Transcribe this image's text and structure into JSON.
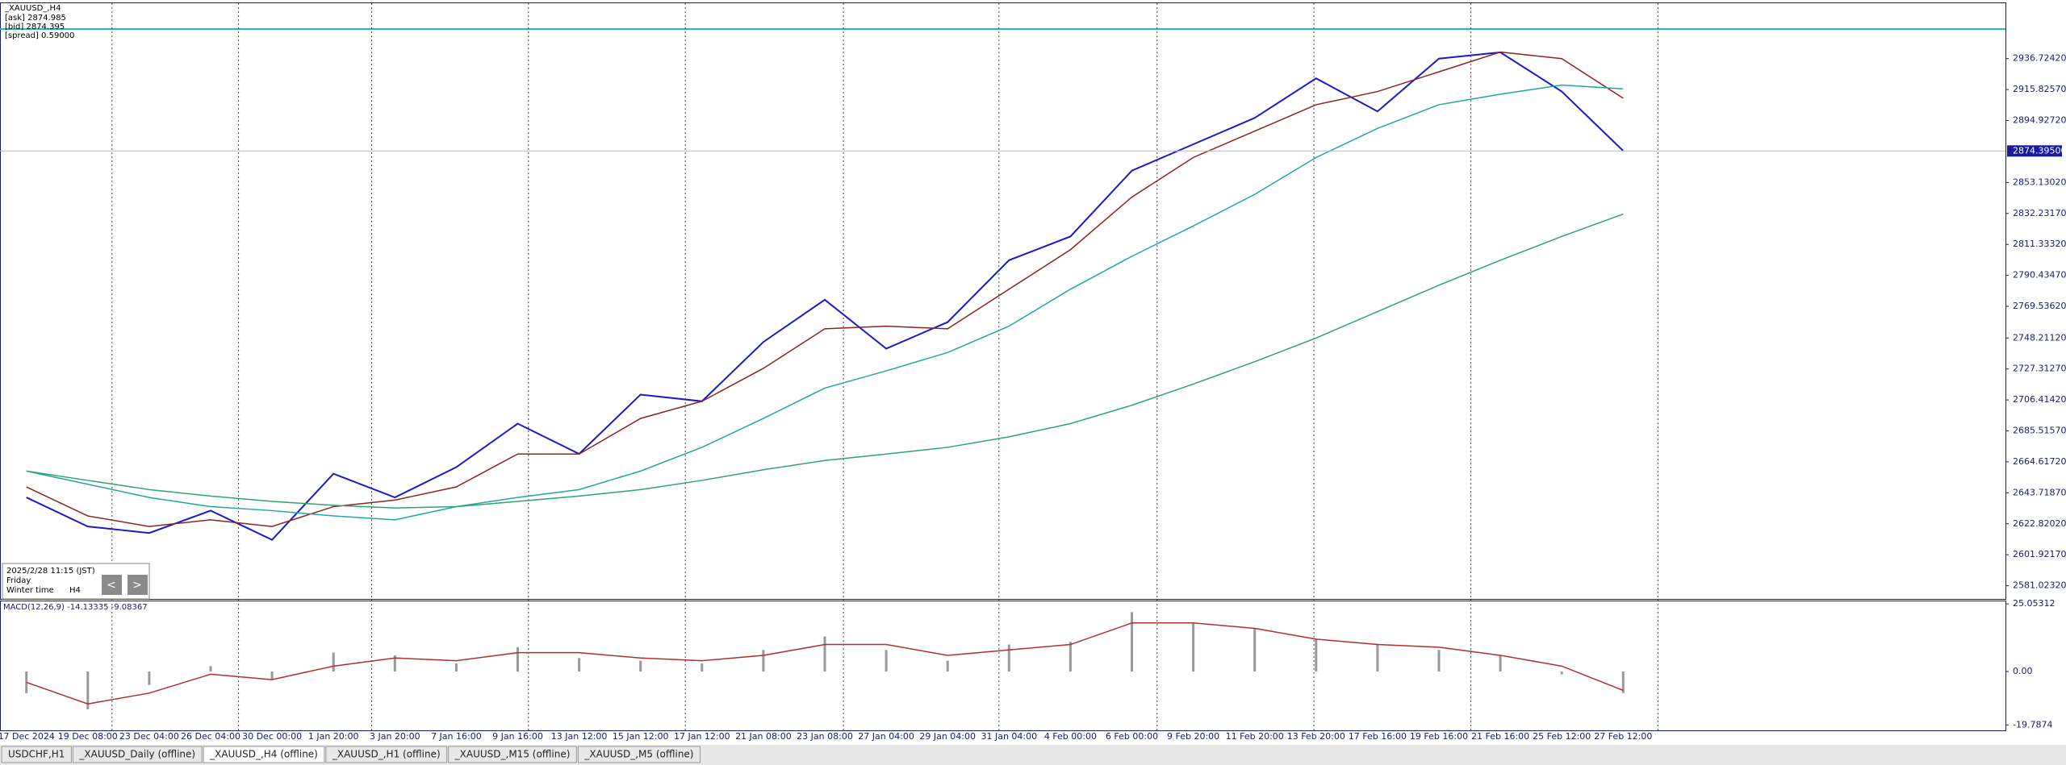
{
  "header": {
    "symbol": "_XAUUSD_,H4",
    "ask": "[ask] 2874.985",
    "bid": "[bid] 2874.395",
    "spread": "[spread] 0.59000"
  },
  "info_box": {
    "datetime": "2025/2/28 11:15 (JST)",
    "day": "Friday",
    "season": "Winter time",
    "timeframe": "H4",
    "prev": "<",
    "next": ">"
  },
  "tabs": [
    "USDCHF,H1",
    "_XAUUSD_Daily (offline)",
    "_XAUUSD_,H4 (offline)",
    "_XAUUSD_,H1 (offline)",
    "_XAUUSD_,M15 (offline)",
    "_XAUUSD_,M5 (offline)"
  ],
  "active_tab": 2,
  "chart_data": [
    {
      "type": "line",
      "categories": [
        "17 Dec 2024",
        "19 Dec 08:00",
        "23 Dec 04:00",
        "26 Dec 04:00",
        "30 Dec 00:00",
        "1 Jan 20:00",
        "3 Jan 20:00",
        "7 Jan 16:00",
        "9 Jan 16:00",
        "13 Jan 12:00",
        "15 Jan 12:00",
        "17 Jan 12:00",
        "21 Jan 08:00",
        "23 Jan 08:00",
        "27 Jan 04:00",
        "29 Jan 04:00",
        "31 Jan 04:00",
        "4 Feb 00:00",
        "6 Feb 00:00",
        "9 Feb 20:00",
        "11 Feb 20:00",
        "13 Feb 20:00",
        "17 Feb 16:00",
        "19 Feb 16:00",
        "21 Feb 16:00",
        "25 Feb 12:00",
        "27 Feb 12:00"
      ],
      "series": [
        {
          "color": "#1a1acc",
          "values": [
            2640.6,
            2621,
            2616.6,
            2631.7,
            2612,
            2656.6,
            2640.6,
            2661,
            2690.4,
            2670,
            2710,
            2705.5,
            2745.5,
            2774,
            2741,
            2758.9,
            2800.7,
            2816.7,
            2861.1,
            2878.9,
            2896.7,
            2923.4,
            2901.1,
            2936.7,
            2941,
            2914.5,
            2874.5
          ]
        },
        {
          "color": "#8b2323",
          "values": [
            2647.7,
            2628.1,
            2621.0,
            2625.5,
            2621.0,
            2634.4,
            2638.8,
            2647.7,
            2669.9,
            2669.9,
            2693.9,
            2705.5,
            2727.7,
            2754.4,
            2756.2,
            2754.4,
            2781.1,
            2807.8,
            2843.3,
            2870.0,
            2887.8,
            2905.6,
            2914.5,
            2927.8,
            2941.2,
            2936.7,
            2910.0
          ]
        },
        {
          "color": "#20a8a0",
          "values": [
            2658.4,
            2649.5,
            2640.6,
            2634.4,
            2631.7,
            2628.1,
            2625.5,
            2634.4,
            2640.6,
            2645.9,
            2658.4,
            2674.4,
            2693.9,
            2714.4,
            2726.0,
            2738.4,
            2756.2,
            2781.1,
            2803.3,
            2823.8,
            2845.1,
            2870.0,
            2889.6,
            2905.6,
            2912.7,
            2918.9,
            2916.3
          ]
        },
        {
          "color": "#2ca56e",
          "values": [
            2658.4,
            2652.1,
            2645.9,
            2641.5,
            2637.9,
            2635.3,
            2633.5,
            2634.4,
            2637.9,
            2641.5,
            2645.9,
            2652.1,
            2659.3,
            2665.5,
            2669.9,
            2674.4,
            2681.5,
            2690.4,
            2702.8,
            2717.1,
            2732.2,
            2748.2,
            2766.0,
            2783.8,
            2800.7,
            2816.7,
            2831.8
          ]
        }
      ],
      "ylim": [
        2572.1,
        2974.1
      ],
      "yticks": [
        {
          "value": 2936.7242,
          "label": "2936.72420"
        },
        {
          "value": 2915.8257,
          "label": "2915.82570"
        },
        {
          "value": 2894.9272,
          "label": "2894.92720"
        },
        {
          "value": 2853.1302,
          "label": "2853.13020"
        },
        {
          "value": 2832.2317,
          "label": "2832.23170"
        },
        {
          "value": 2811.3332,
          "label": "2811.33320"
        },
        {
          "value": 2790.4347,
          "label": "2790.43470"
        },
        {
          "value": 2769.5362,
          "label": "2769.53620"
        },
        {
          "value": 2748.2112,
          "label": "2748.21120"
        },
        {
          "value": 2727.3127,
          "label": "2727.31270"
        },
        {
          "value": 2706.4142,
          "label": "2706.41420"
        },
        {
          "value": 2685.5157,
          "label": "2685.51570"
        },
        {
          "value": 2664.6172,
          "label": "2664.61720"
        },
        {
          "value": 2643.7187,
          "label": "2643.71870"
        },
        {
          "value": 2622.8202,
          "label": "2622.82020"
        },
        {
          "value": 2601.9217,
          "label": "2601.92170"
        },
        {
          "value": 2581.0232,
          "label": "2581.02320"
        }
      ],
      "current": {
        "value": 2874.395,
        "label": "2874.39500",
        "color": "#1a1a9e"
      }
    },
    {
      "type": "bar",
      "title": "MACD(12,26,9) -14.13335 -9.08367",
      "values": [
        -8,
        -14,
        -5,
        2,
        -3,
        7,
        6,
        3,
        9,
        5,
        4,
        3,
        8,
        13,
        8,
        4,
        10,
        11,
        22,
        18,
        16,
        12,
        10,
        8,
        6,
        -1,
        -8
      ],
      "color": "#999999",
      "signal": {
        "color": "#b03030",
        "values": [
          -4,
          -12,
          -8,
          -1,
          -3,
          2,
          5,
          4,
          7,
          7,
          5,
          4,
          6,
          10,
          10,
          6,
          8,
          10,
          18,
          18,
          16,
          12,
          10,
          9,
          6,
          2,
          -7
        ]
      },
      "ylim": [
        -21.8,
        26
      ],
      "yticks": [
        {
          "value": 25.05312,
          "label": "25.05312"
        },
        {
          "value": 0,
          "label": "0.00"
        },
        {
          "value": -19.7874,
          "label": "-19.7874"
        }
      ]
    }
  ]
}
